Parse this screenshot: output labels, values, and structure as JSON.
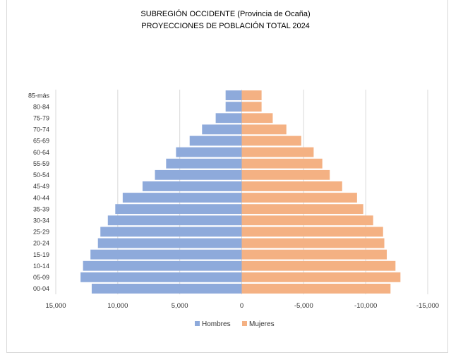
{
  "chart_data": {
    "type": "bar",
    "orientation": "horizontal",
    "title": "SUBREGIÓN OCCIDENTE (Provincia de Ocaña)",
    "subtitle": "PROYECCIONES DE POBLACIÓN TOTAL 2024",
    "categories": [
      "00-04",
      "05-09",
      "10-14",
      "15-19",
      "20-24",
      "25-29",
      "30-34",
      "35-39",
      "40-44",
      "45-49",
      "50-54",
      "55-59",
      "60-64",
      "65-69",
      "70-74",
      "75-79",
      "80-84",
      "85-más"
    ],
    "series": [
      {
        "name": "Hombres",
        "color": "#8eaadb",
        "values": [
          12100,
          13000,
          12800,
          12200,
          11600,
          11400,
          10800,
          10200,
          9600,
          8000,
          7000,
          6100,
          5300,
          4200,
          3200,
          2100,
          1300,
          1300
        ]
      },
      {
        "name": "Mujeres",
        "color": "#f4b183",
        "values": [
          -12000,
          -12800,
          -12400,
          -11700,
          -11500,
          -11400,
          -10600,
          -9800,
          -9300,
          -8100,
          -7100,
          -6500,
          -5800,
          -4800,
          -3600,
          -2500,
          -1600,
          -1600
        ]
      }
    ],
    "xlim": [
      15000,
      -15000
    ],
    "x_ticks": [
      15000,
      10000,
      5000,
      0,
      -5000,
      -10000,
      -15000
    ],
    "x_tick_labels": [
      "15,000",
      "10,000",
      "5,000",
      "0",
      "-5,000",
      "-10,000",
      "-15,000"
    ],
    "grid": "vertical",
    "legend": "bottom"
  }
}
